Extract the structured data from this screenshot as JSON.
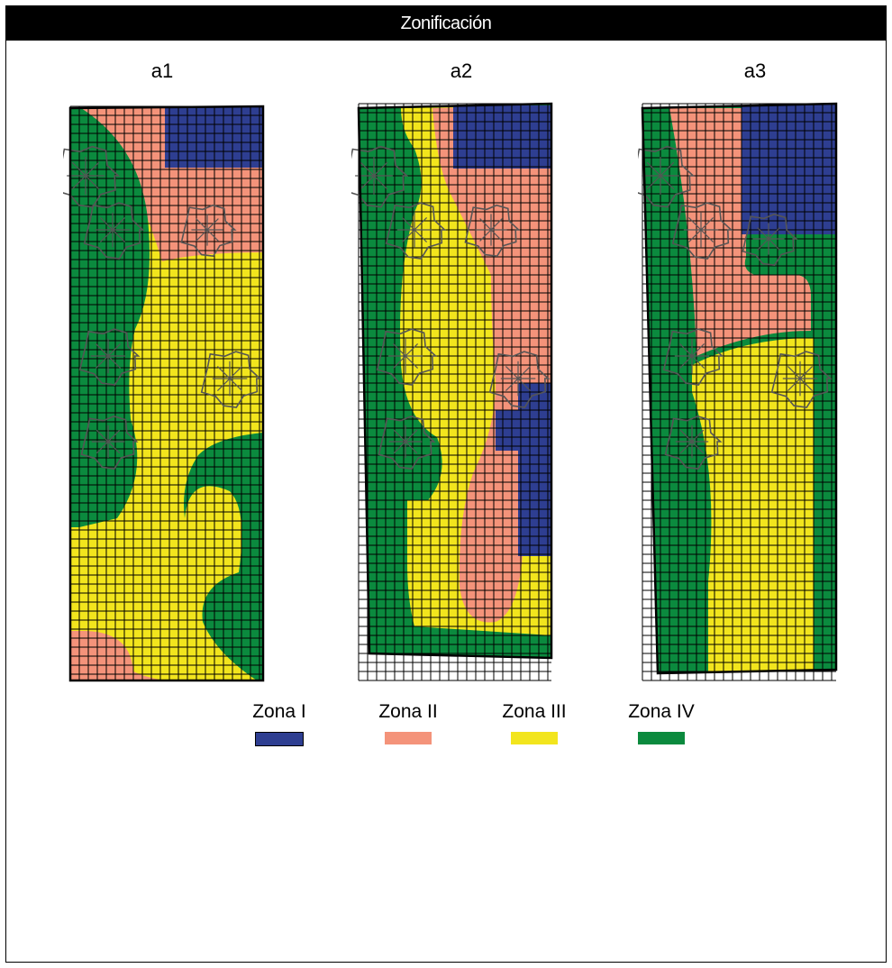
{
  "title": "Zonificación",
  "panels": [
    {
      "label": "a1"
    },
    {
      "label": "a2"
    },
    {
      "label": "a3"
    }
  ],
  "legend": [
    {
      "label": "Zona I",
      "color": "#2e3e91",
      "border": "#000000"
    },
    {
      "label": "Zona II",
      "color": "#f4937a",
      "border": "none"
    },
    {
      "label": "Zona III",
      "color": "#f2e51d",
      "border": "none"
    },
    {
      "label": "Zona IV",
      "color": "#0b8a3e",
      "border": "none"
    }
  ],
  "colors": {
    "zona_i": "#2e3e91",
    "zona_ii": "#f4937a",
    "zona_iii": "#f2e51d",
    "zona_iv": "#0b8a3e",
    "grid": "#000000",
    "tree_outline": "#555555"
  },
  "icons": [
    "tree-canopy-icon"
  ]
}
